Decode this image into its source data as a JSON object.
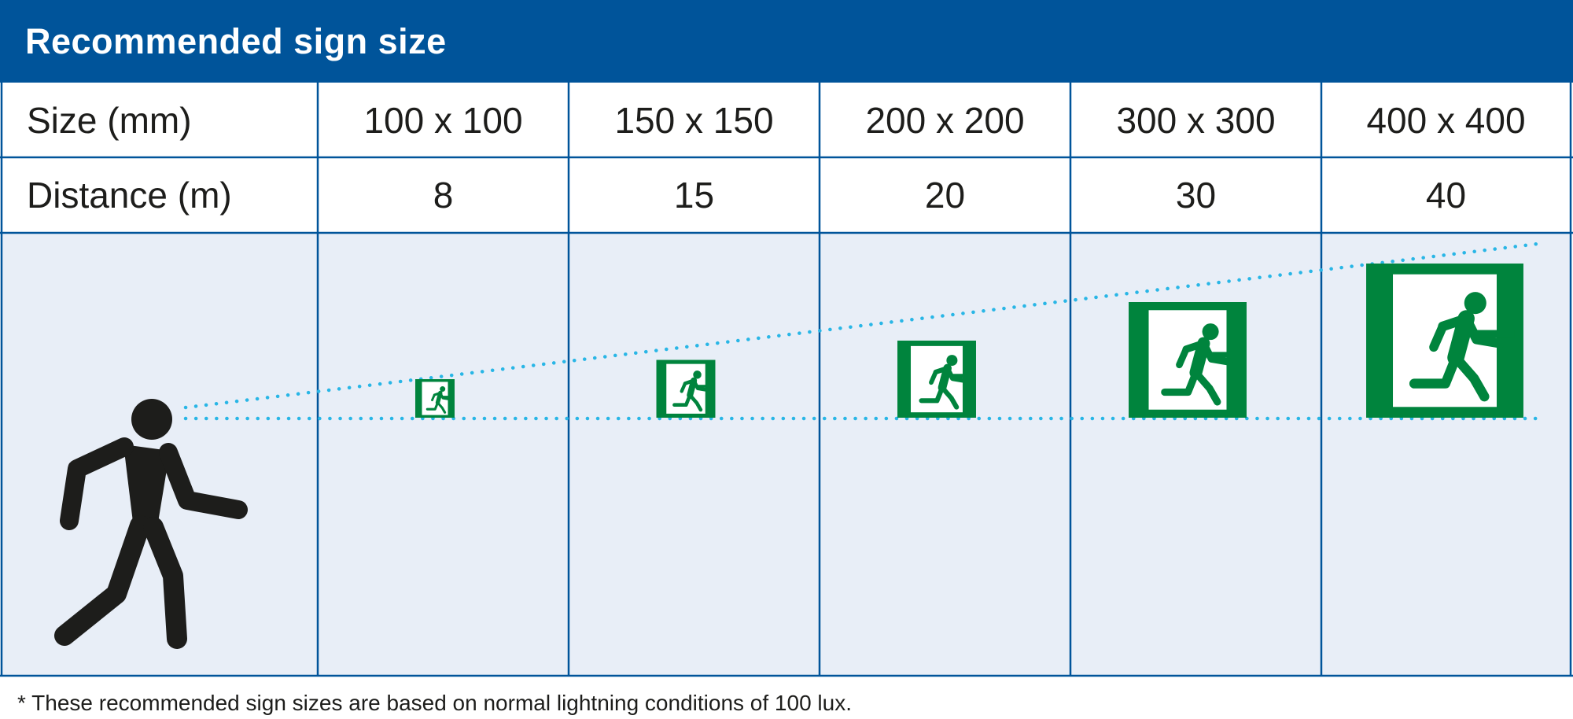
{
  "title": "Recommended sign size",
  "table": {
    "rows": [
      {
        "label": "Size (mm)",
        "values": [
          "100 x 100",
          "150 x 150",
          "200 x 200",
          "300 x 300",
          "400 x 400"
        ]
      },
      {
        "label": "Distance (m)",
        "values": [
          "8",
          "15",
          "20",
          "30",
          "40"
        ]
      }
    ]
  },
  "signs": [
    {
      "size_mm": 100,
      "distance_m": 8
    },
    {
      "size_mm": 150,
      "distance_m": 15
    },
    {
      "size_mm": 200,
      "distance_m": 20
    },
    {
      "size_mm": 300,
      "distance_m": 30
    },
    {
      "size_mm": 400,
      "distance_m": 40
    }
  ],
  "footnote": "* These recommended sign sizes are based on normal lightning conditions of 100 lux.",
  "icons": {
    "person": "walking-person-icon",
    "sign": "emergency-exit-sign-icon"
  },
  "colors": {
    "header": "#00549a",
    "grid_line": "#00549a",
    "panel": "#e8eef7",
    "sign_green": "#00843d",
    "sight_line": "#29b6e6",
    "figure": "#1d1d1b"
  }
}
